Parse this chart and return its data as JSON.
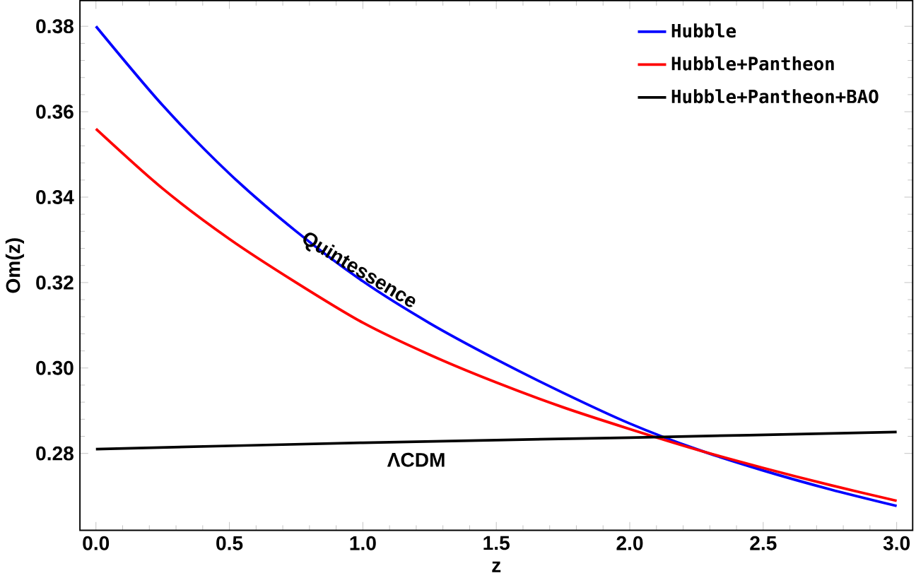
{
  "chart_data": {
    "type": "line",
    "xlabel": "z",
    "ylabel": "Om(z)",
    "xlim": [
      -0.06,
      3.06
    ],
    "ylim": [
      0.262,
      0.386
    ],
    "xticks": [
      {
        "value": 0,
        "label": "0.0"
      },
      0.5,
      {
        "value": 1,
        "label": "1.0"
      },
      1.5,
      {
        "value": 2,
        "label": "2.0"
      },
      2.5,
      {
        "value": 3,
        "label": "3.0"
      }
    ],
    "yticks": [
      0.28,
      {
        "value": 0.3,
        "label": "0.30"
      },
      0.32,
      0.34,
      0.36,
      0.38
    ],
    "legend": "top right",
    "grid": false,
    "marker": "none",
    "line_style": "solid",
    "series": [
      {
        "name": "Hubble",
        "color": "#0000ff",
        "x": [
          0,
          0.25,
          0.5,
          0.75,
          1,
          1.25,
          1.5,
          1.75,
          2,
          2.25,
          2.5,
          2.75,
          3
        ],
        "values": [
          0.38,
          0.3615,
          0.3455,
          0.332,
          0.3203,
          0.3105,
          0.302,
          0.2942,
          0.287,
          0.281,
          0.276,
          0.2716,
          0.2677
        ]
      },
      {
        "name": "Hubble+Pantheon",
        "color": "#ff0000",
        "x": [
          0,
          0.25,
          0.5,
          0.75,
          1,
          1.25,
          1.5,
          1.75,
          2,
          2.25,
          2.5,
          2.75,
          3
        ],
        "values": [
          0.356,
          0.342,
          0.3302,
          0.32,
          0.3106,
          0.3031,
          0.2966,
          0.2908,
          0.2857,
          0.2809,
          0.2766,
          0.2726,
          0.2689
        ]
      },
      {
        "name": "Hubble+Pantheon+BAO",
        "color": "#000000",
        "x": [
          0,
          1,
          2,
          3
        ],
        "values": [
          0.281,
          0.2825,
          0.2837,
          0.285
        ]
      }
    ],
    "annotations": [
      "Quintessence",
      "ΛCDM"
    ]
  }
}
